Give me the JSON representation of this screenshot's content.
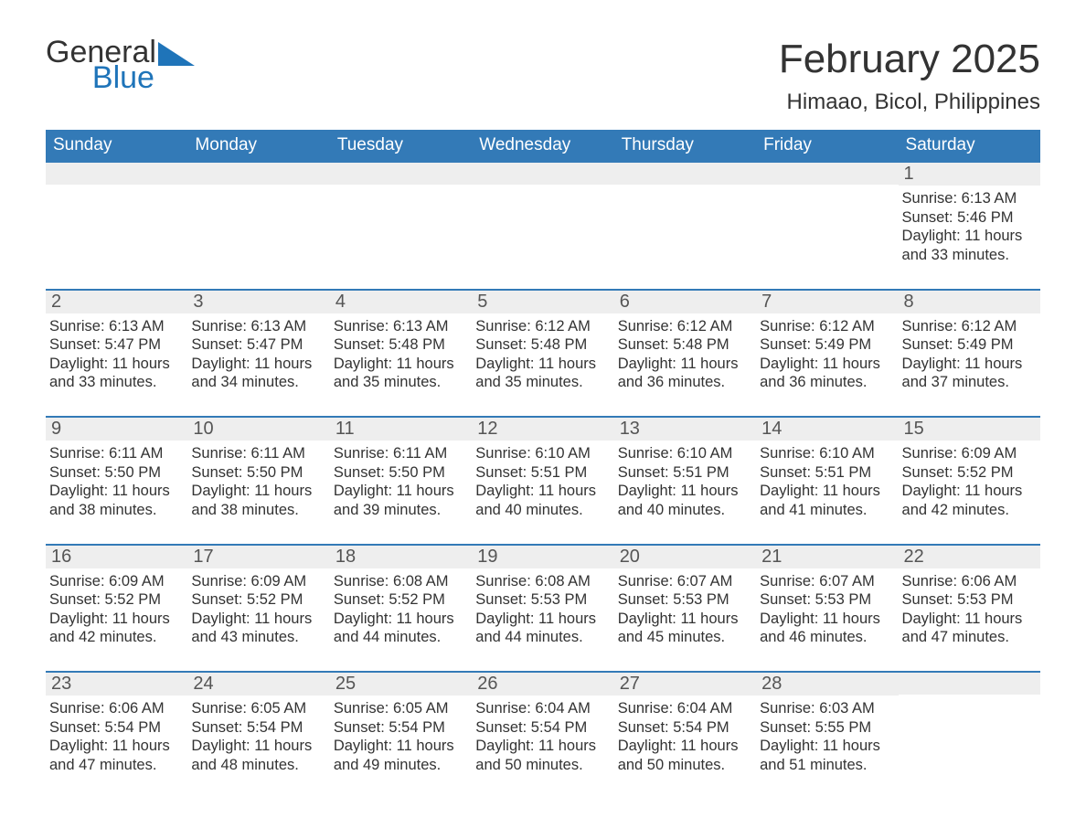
{
  "logo": {
    "text1": "General",
    "text2": "Blue",
    "sail_color": "#1f74b9"
  },
  "title": "February 2025",
  "location": "Himaao, Bicol, Philippines",
  "colors": {
    "header_bg": "#337ab7",
    "header_text": "#ffffff",
    "daynum_bg": "#eeeeee",
    "border": "#337ab7",
    "body_text": "#333333"
  },
  "typography": {
    "title_fontsize": 44,
    "location_fontsize": 24,
    "header_fontsize": 19,
    "daynum_fontsize": 20,
    "body_fontsize": 16.5
  },
  "day_headers": [
    "Sunday",
    "Monday",
    "Tuesday",
    "Wednesday",
    "Thursday",
    "Friday",
    "Saturday"
  ],
  "weeks": [
    [
      {
        "empty": true
      },
      {
        "empty": true
      },
      {
        "empty": true
      },
      {
        "empty": true
      },
      {
        "empty": true
      },
      {
        "empty": true
      },
      {
        "n": "1",
        "sunrise": "Sunrise: 6:13 AM",
        "sunset": "Sunset: 5:46 PM",
        "daylight": "Daylight: 11 hours and 33 minutes."
      }
    ],
    [
      {
        "n": "2",
        "sunrise": "Sunrise: 6:13 AM",
        "sunset": "Sunset: 5:47 PM",
        "daylight": "Daylight: 11 hours and 33 minutes."
      },
      {
        "n": "3",
        "sunrise": "Sunrise: 6:13 AM",
        "sunset": "Sunset: 5:47 PM",
        "daylight": "Daylight: 11 hours and 34 minutes."
      },
      {
        "n": "4",
        "sunrise": "Sunrise: 6:13 AM",
        "sunset": "Sunset: 5:48 PM",
        "daylight": "Daylight: 11 hours and 35 minutes."
      },
      {
        "n": "5",
        "sunrise": "Sunrise: 6:12 AM",
        "sunset": "Sunset: 5:48 PM",
        "daylight": "Daylight: 11 hours and 35 minutes."
      },
      {
        "n": "6",
        "sunrise": "Sunrise: 6:12 AM",
        "sunset": "Sunset: 5:48 PM",
        "daylight": "Daylight: 11 hours and 36 minutes."
      },
      {
        "n": "7",
        "sunrise": "Sunrise: 6:12 AM",
        "sunset": "Sunset: 5:49 PM",
        "daylight": "Daylight: 11 hours and 36 minutes."
      },
      {
        "n": "8",
        "sunrise": "Sunrise: 6:12 AM",
        "sunset": "Sunset: 5:49 PM",
        "daylight": "Daylight: 11 hours and 37 minutes."
      }
    ],
    [
      {
        "n": "9",
        "sunrise": "Sunrise: 6:11 AM",
        "sunset": "Sunset: 5:50 PM",
        "daylight": "Daylight: 11 hours and 38 minutes."
      },
      {
        "n": "10",
        "sunrise": "Sunrise: 6:11 AM",
        "sunset": "Sunset: 5:50 PM",
        "daylight": "Daylight: 11 hours and 38 minutes."
      },
      {
        "n": "11",
        "sunrise": "Sunrise: 6:11 AM",
        "sunset": "Sunset: 5:50 PM",
        "daylight": "Daylight: 11 hours and 39 minutes."
      },
      {
        "n": "12",
        "sunrise": "Sunrise: 6:10 AM",
        "sunset": "Sunset: 5:51 PM",
        "daylight": "Daylight: 11 hours and 40 minutes."
      },
      {
        "n": "13",
        "sunrise": "Sunrise: 6:10 AM",
        "sunset": "Sunset: 5:51 PM",
        "daylight": "Daylight: 11 hours and 40 minutes."
      },
      {
        "n": "14",
        "sunrise": "Sunrise: 6:10 AM",
        "sunset": "Sunset: 5:51 PM",
        "daylight": "Daylight: 11 hours and 41 minutes."
      },
      {
        "n": "15",
        "sunrise": "Sunrise: 6:09 AM",
        "sunset": "Sunset: 5:52 PM",
        "daylight": "Daylight: 11 hours and 42 minutes."
      }
    ],
    [
      {
        "n": "16",
        "sunrise": "Sunrise: 6:09 AM",
        "sunset": "Sunset: 5:52 PM",
        "daylight": "Daylight: 11 hours and 42 minutes."
      },
      {
        "n": "17",
        "sunrise": "Sunrise: 6:09 AM",
        "sunset": "Sunset: 5:52 PM",
        "daylight": "Daylight: 11 hours and 43 minutes."
      },
      {
        "n": "18",
        "sunrise": "Sunrise: 6:08 AM",
        "sunset": "Sunset: 5:52 PM",
        "daylight": "Daylight: 11 hours and 44 minutes."
      },
      {
        "n": "19",
        "sunrise": "Sunrise: 6:08 AM",
        "sunset": "Sunset: 5:53 PM",
        "daylight": "Daylight: 11 hours and 44 minutes."
      },
      {
        "n": "20",
        "sunrise": "Sunrise: 6:07 AM",
        "sunset": "Sunset: 5:53 PM",
        "daylight": "Daylight: 11 hours and 45 minutes."
      },
      {
        "n": "21",
        "sunrise": "Sunrise: 6:07 AM",
        "sunset": "Sunset: 5:53 PM",
        "daylight": "Daylight: 11 hours and 46 minutes."
      },
      {
        "n": "22",
        "sunrise": "Sunrise: 6:06 AM",
        "sunset": "Sunset: 5:53 PM",
        "daylight": "Daylight: 11 hours and 47 minutes."
      }
    ],
    [
      {
        "n": "23",
        "sunrise": "Sunrise: 6:06 AM",
        "sunset": "Sunset: 5:54 PM",
        "daylight": "Daylight: 11 hours and 47 minutes."
      },
      {
        "n": "24",
        "sunrise": "Sunrise: 6:05 AM",
        "sunset": "Sunset: 5:54 PM",
        "daylight": "Daylight: 11 hours and 48 minutes."
      },
      {
        "n": "25",
        "sunrise": "Sunrise: 6:05 AM",
        "sunset": "Sunset: 5:54 PM",
        "daylight": "Daylight: 11 hours and 49 minutes."
      },
      {
        "n": "26",
        "sunrise": "Sunrise: 6:04 AM",
        "sunset": "Sunset: 5:54 PM",
        "daylight": "Daylight: 11 hours and 50 minutes."
      },
      {
        "n": "27",
        "sunrise": "Sunrise: 6:04 AM",
        "sunset": "Sunset: 5:54 PM",
        "daylight": "Daylight: 11 hours and 50 minutes."
      },
      {
        "n": "28",
        "sunrise": "Sunrise: 6:03 AM",
        "sunset": "Sunset: 5:55 PM",
        "daylight": "Daylight: 11 hours and 51 minutes."
      },
      {
        "empty": true
      }
    ]
  ]
}
